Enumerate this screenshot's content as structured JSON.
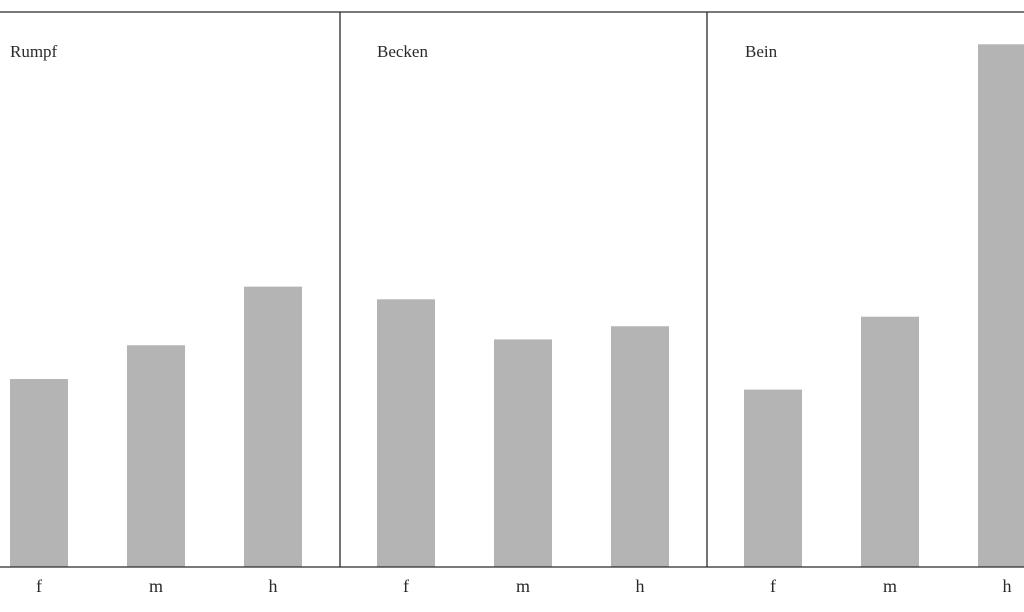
{
  "chart_data": {
    "type": "bar",
    "panels": [
      {
        "title": "Rumpf",
        "categories": [
          "f",
          "m",
          "h"
        ],
        "values": [
          35.6,
          42.0,
          53.1
        ]
      },
      {
        "title": "Becken",
        "categories": [
          "f",
          "m",
          "h"
        ],
        "values": [
          50.7,
          43.1,
          45.6
        ]
      },
      {
        "title": "Bein",
        "categories": [
          "f",
          "m",
          "h"
        ],
        "values": [
          33.6,
          47.4,
          99.0
        ]
      }
    ],
    "ylim": [
      0,
      100
    ],
    "grid": false,
    "legend": "none",
    "bar_color": "#b4b4b4",
    "line_color": "#2a2a2a"
  }
}
